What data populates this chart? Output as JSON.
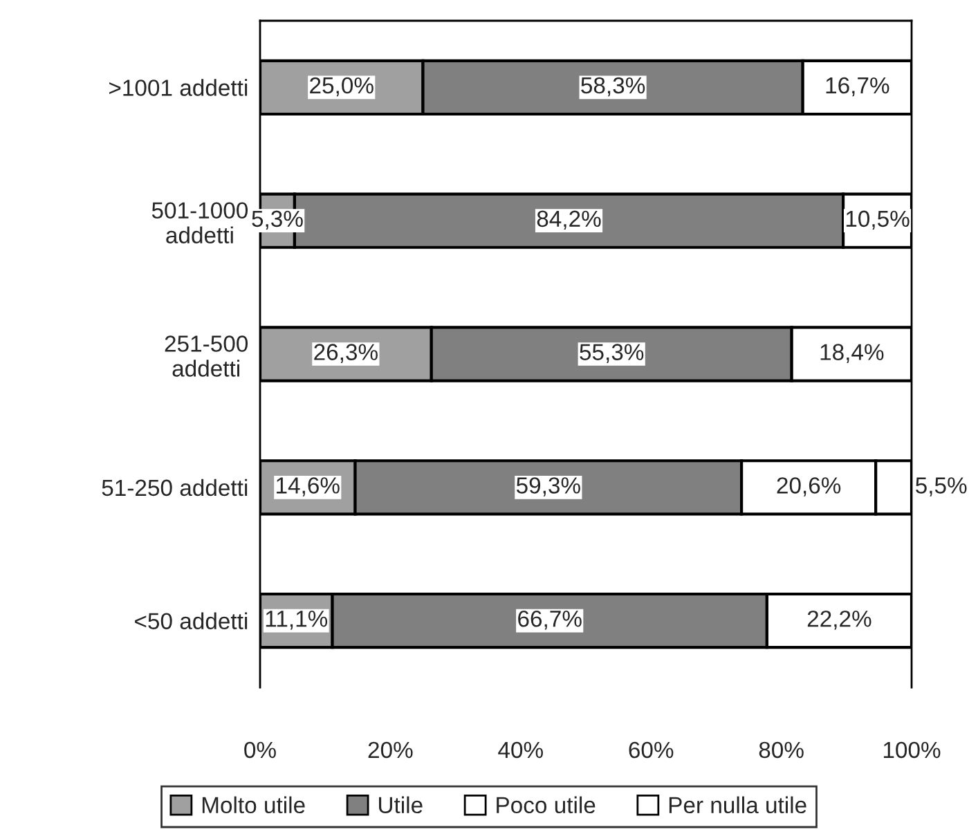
{
  "chart_data": {
    "type": "bar",
    "orientation": "horizontal",
    "stacked": true,
    "categories": [
      ">1001 addetti",
      "501-1000\naddetti",
      "251-500\naddetti",
      "51-250 addetti",
      "<50 addetti"
    ],
    "series": [
      {
        "name": "Molto utile",
        "color": "#a0a0a0",
        "values": [
          25.0,
          5.3,
          26.3,
          14.6,
          11.1
        ],
        "value_labels": [
          "25,0%",
          "5,3%",
          "26,3%",
          "14,6%",
          "11,1%"
        ]
      },
      {
        "name": "Utile",
        "color": "#808080",
        "values": [
          58.3,
          84.2,
          55.3,
          59.3,
          66.7
        ],
        "value_labels": [
          "58,3%",
          "84,2%",
          "55,3%",
          "59,3%",
          "66,7%"
        ]
      },
      {
        "name": "Poco utile",
        "color": "#ffffff",
        "values": [
          16.7,
          10.5,
          18.4,
          20.6,
          22.2
        ],
        "value_labels": [
          "16,7%",
          "10,5%",
          "18,4%",
          "20,6%",
          "22,2%"
        ]
      },
      {
        "name": "Per nulla utile",
        "color": "#ffffff",
        "values": [
          null,
          null,
          null,
          5.5,
          null
        ],
        "value_labels": [
          null,
          null,
          null,
          "5,5%",
          null
        ]
      }
    ],
    "xlim": [
      0,
      100
    ],
    "xticks": [
      {
        "value": 0,
        "label": "0%"
      },
      {
        "value": 20,
        "label": "20%"
      },
      {
        "value": 40,
        "label": "40%"
      },
      {
        "value": 60,
        "label": "60%"
      },
      {
        "value": 80,
        "label": "80%"
      },
      {
        "value": 100,
        "label": "100%"
      }
    ],
    "grid": false,
    "legend": "bottom"
  }
}
